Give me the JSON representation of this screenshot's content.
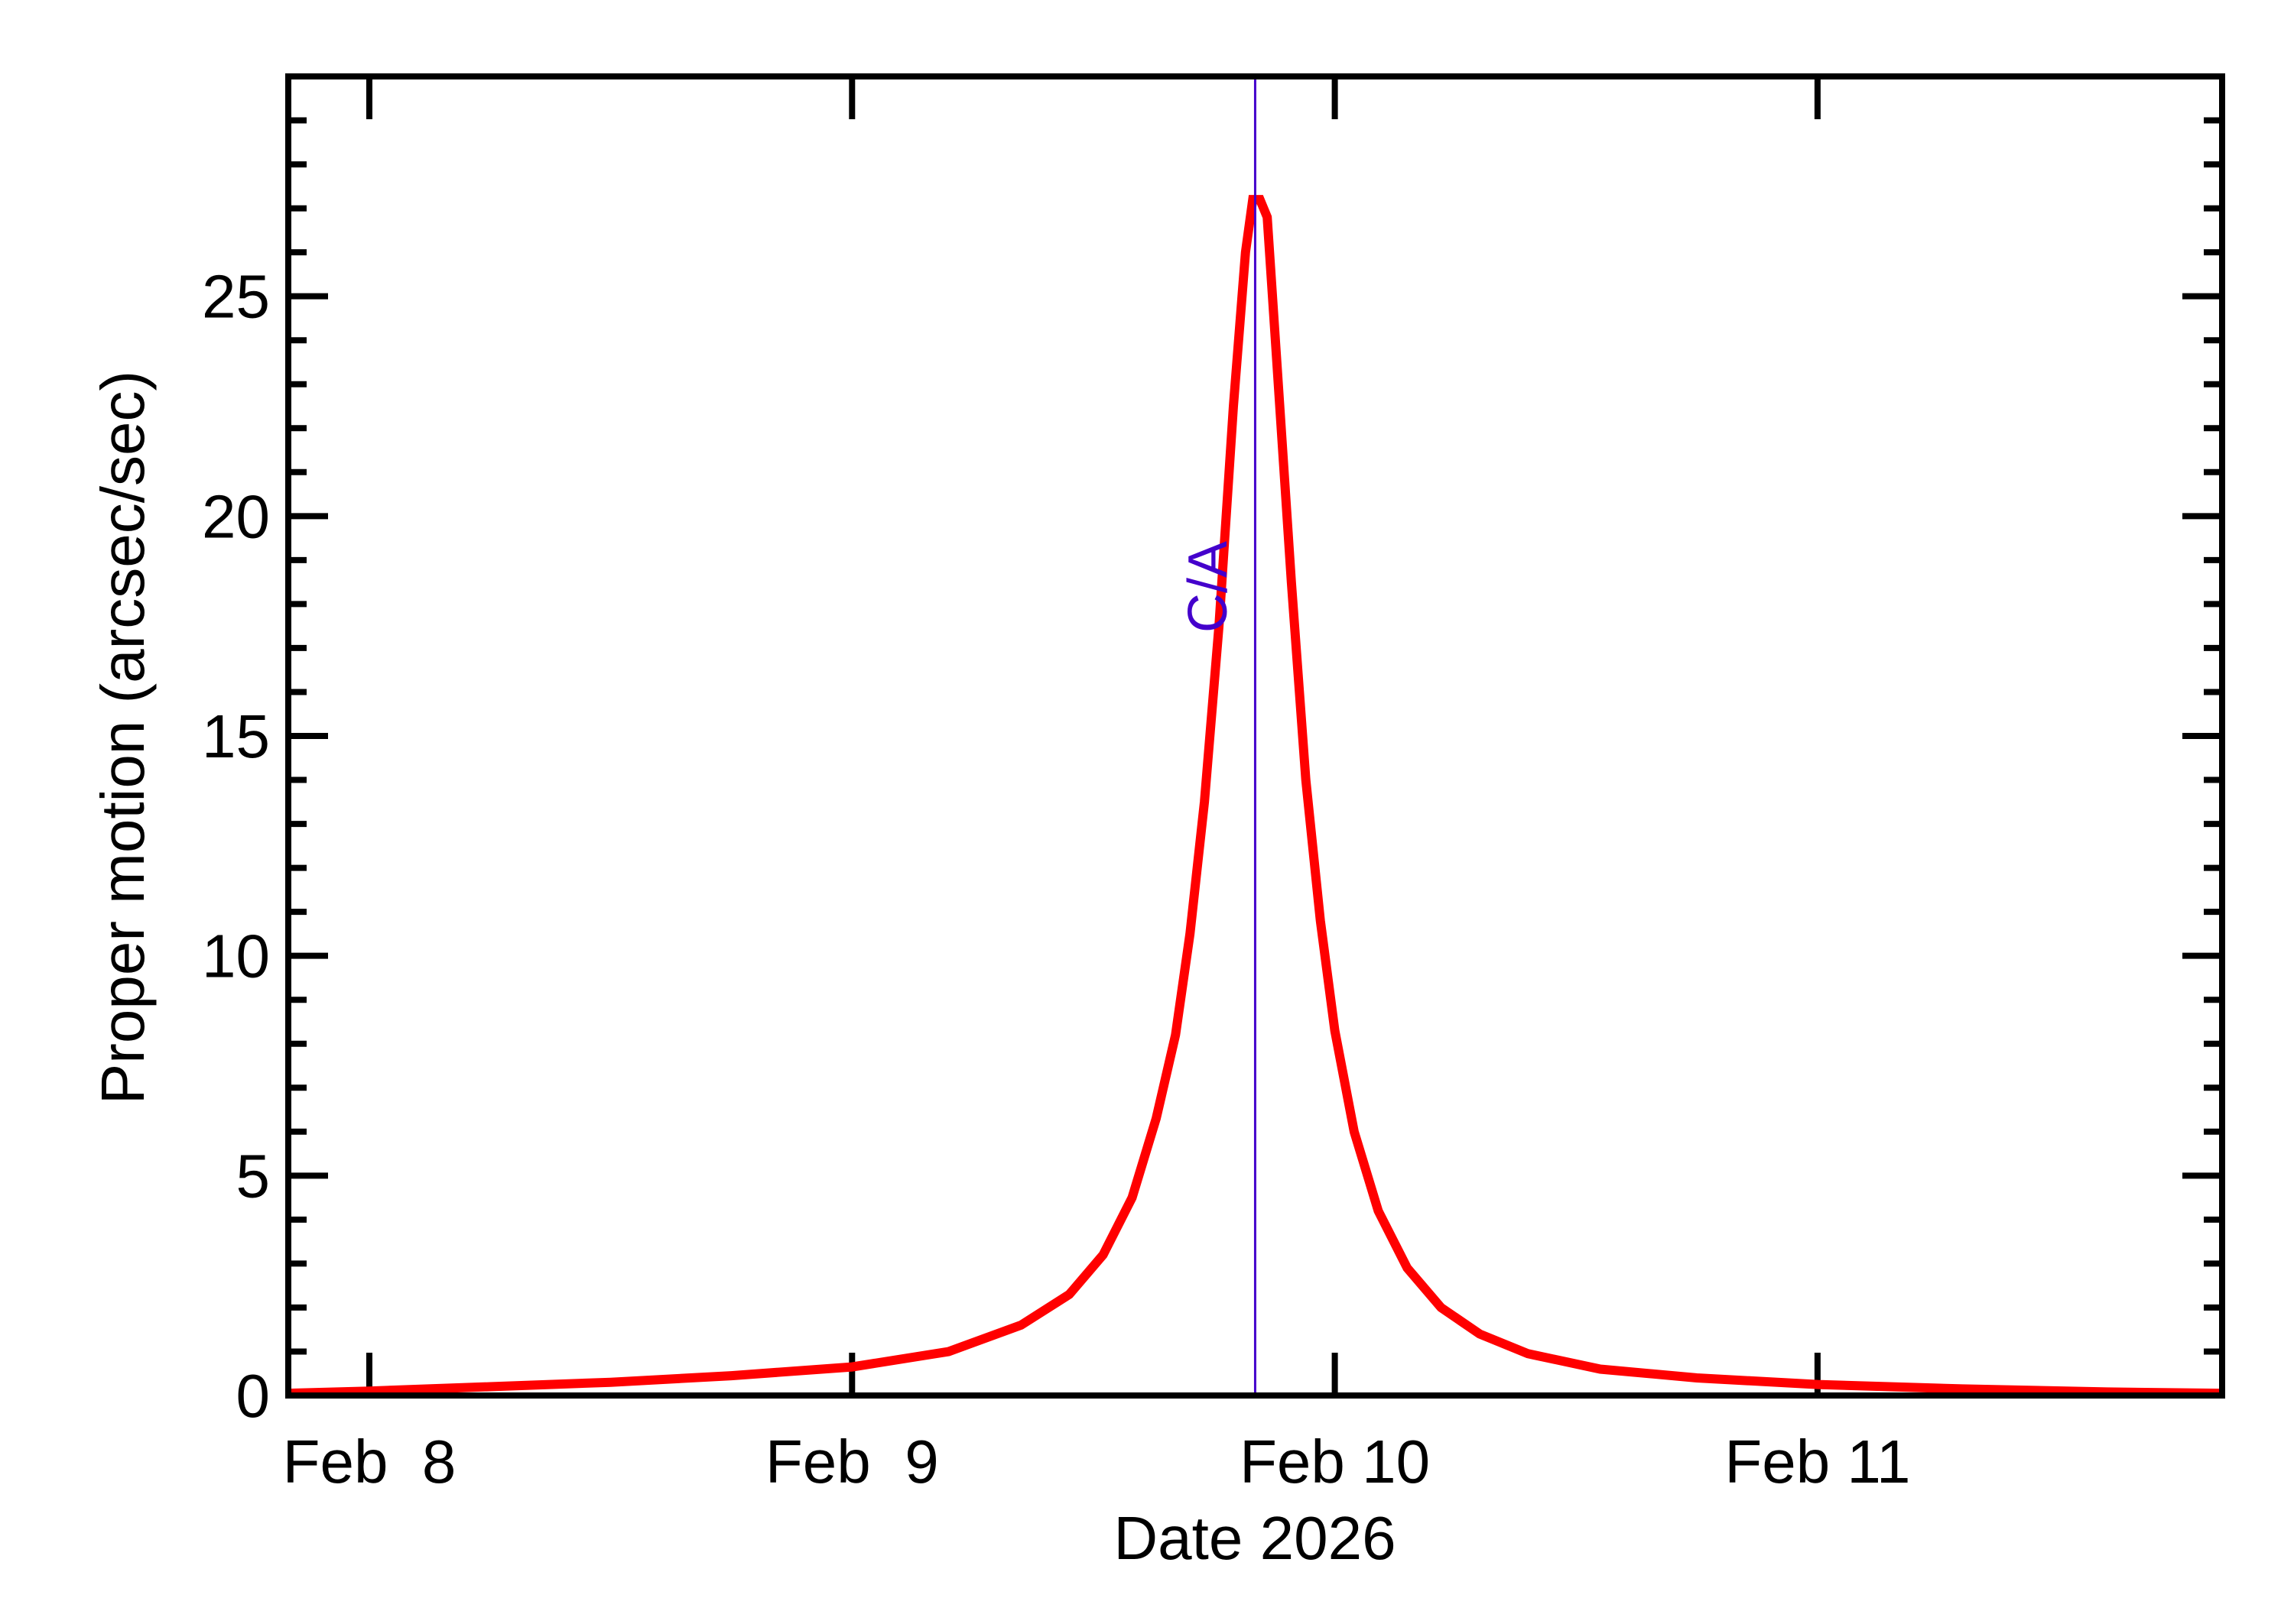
{
  "chart_data": {
    "type": "line",
    "title": "",
    "xlabel": "Date 2026",
    "ylabel": "Proper motion (arcsec/sec)",
    "x_units": "days since Feb 8 2026 00:00",
    "xlim": [
      -0.168,
      3.836
    ],
    "ylim": [
      0,
      30
    ],
    "x_ticks": [
      {
        "value": 0,
        "label": "Feb  8"
      },
      {
        "value": 1,
        "label": "Feb  9"
      },
      {
        "value": 2,
        "label": "Feb 10"
      },
      {
        "value": 3,
        "label": "Feb 11"
      }
    ],
    "y_ticks": [
      {
        "value": 0,
        "label": "0"
      },
      {
        "value": 5,
        "label": "5"
      },
      {
        "value": 10,
        "label": "10"
      },
      {
        "value": 15,
        "label": "15"
      },
      {
        "value": 20,
        "label": "20"
      },
      {
        "value": 25,
        "label": "25"
      }
    ],
    "y_minor_step": 1,
    "grid": false,
    "legend": null,
    "annotations": [
      {
        "type": "vline",
        "x": 1.835,
        "label": "C/A",
        "color": "#4400cc"
      }
    ],
    "series": [
      {
        "name": "Proper motion",
        "color": "#ff0000",
        "x": [
          -0.168,
          0.0,
          0.25,
          0.5,
          0.75,
          1.0,
          1.2,
          1.35,
          1.45,
          1.52,
          1.58,
          1.63,
          1.67,
          1.7,
          1.73,
          1.76,
          1.79,
          1.815,
          1.83,
          1.845,
          1.86,
          1.88,
          1.91,
          1.94,
          1.97,
          2.0,
          2.04,
          2.09,
          2.15,
          2.22,
          2.3,
          2.4,
          2.55,
          2.75,
          3.0,
          3.3,
          3.6,
          3.836
        ],
        "values": [
          0.05,
          0.1,
          0.2,
          0.3,
          0.45,
          0.65,
          1.0,
          1.6,
          2.3,
          3.2,
          4.5,
          6.3,
          8.2,
          10.5,
          13.5,
          17.5,
          22.5,
          26.0,
          27.2,
          27.2,
          26.8,
          23.5,
          18.5,
          14.0,
          10.8,
          8.3,
          6.0,
          4.2,
          2.9,
          2.0,
          1.4,
          0.95,
          0.6,
          0.4,
          0.25,
          0.15,
          0.08,
          0.05
        ]
      }
    ]
  },
  "axes": {
    "xlabel": "Date 2026",
    "ylabel": "Proper motion (arcsec/sec)",
    "x_tick_labels": [
      "Feb  8",
      "Feb  9",
      "Feb 10",
      "Feb 11"
    ],
    "y_tick_labels": [
      "0",
      "5",
      "10",
      "15",
      "20",
      "25"
    ]
  },
  "annotation": {
    "ca_label": "C/A",
    "ca_color": "#4400cc"
  },
  "colors": {
    "curve": "#ff0000",
    "axes": "#000000",
    "ca_line": "#4400cc"
  }
}
